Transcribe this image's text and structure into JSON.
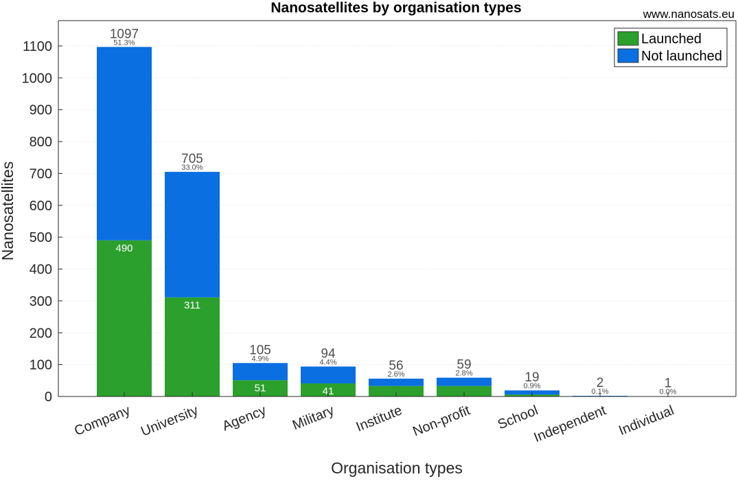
{
  "chart_data": {
    "type": "bar",
    "stacked": true,
    "title": "Nanosatellites by organisation types",
    "source": "www.nanosats.eu",
    "xlabel": "Organisation types",
    "ylabel": "Nanosatellites",
    "ylim": [
      0,
      1150
    ],
    "yticks": [
      0,
      100,
      200,
      300,
      400,
      500,
      600,
      700,
      800,
      900,
      1000,
      1100
    ],
    "grid": true,
    "legend_position": "top-right",
    "categories": [
      "Company",
      "University",
      "Agency",
      "Military",
      "Institute",
      "Non-profit",
      "School",
      "Independent",
      "Individual"
    ],
    "series": [
      {
        "name": "Launched",
        "color": "#2ca02c",
        "values": [
          490,
          311,
          51,
          41,
          33,
          33,
          6,
          0,
          0
        ]
      },
      {
        "name": "Not launched",
        "color": "#0a6fe0",
        "values": [
          607,
          394,
          54,
          53,
          23,
          26,
          13,
          2,
          1
        ]
      }
    ],
    "totals": [
      1097,
      705,
      105,
      94,
      56,
      59,
      19,
      2,
      1
    ],
    "total_labels": [
      "1097",
      "705",
      "105",
      "94",
      "56",
      "59",
      "19",
      "2",
      "1"
    ],
    "percent_labels": [
      "51.3%",
      "33.0%",
      "4.9%",
      "4.4%",
      "2.6%",
      "2.8%",
      "0.9%",
      "0.1%",
      "0.0%"
    ],
    "launched_labels": [
      "490",
      "311",
      "51",
      "41",
      "",
      "",
      "",
      "",
      ""
    ]
  }
}
